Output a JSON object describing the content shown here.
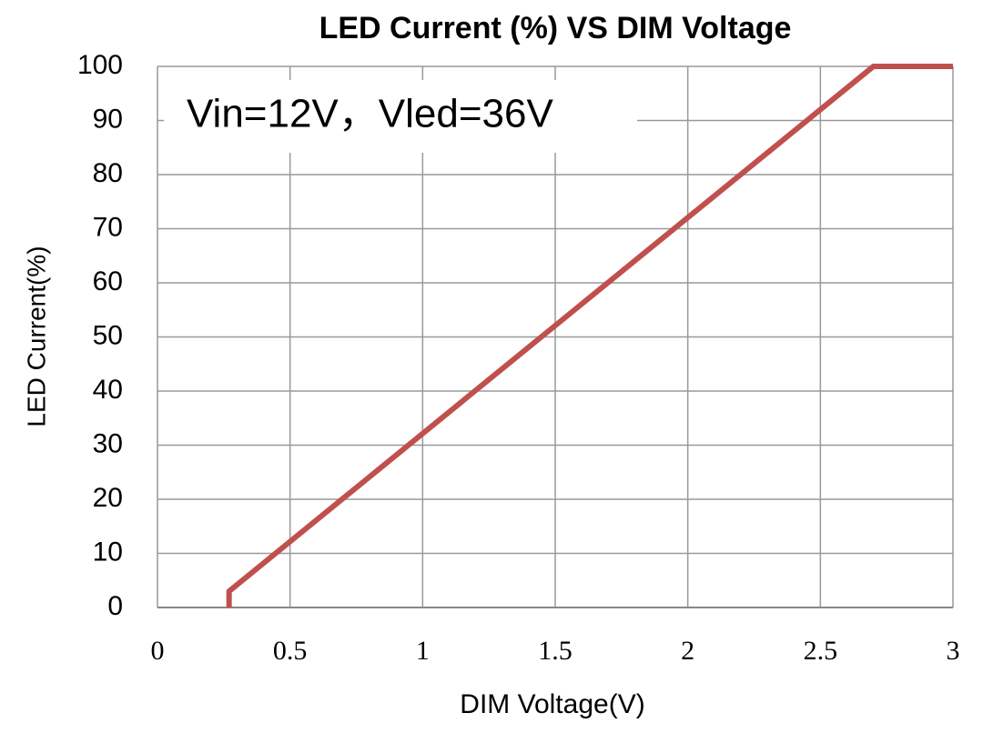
{
  "chart_data": {
    "type": "line",
    "title": "LED Current (%) VS DIM Voltage",
    "x_label": "DIM Voltage(V)",
    "y_label": "LED Current(%)",
    "annotation": "Vin=12V，Vled=36V",
    "x": [
      0.27,
      0.27,
      2.7,
      3
    ],
    "series": [
      {
        "name": "LED Current",
        "color": "#c0504d",
        "values": [
          0,
          3,
          100,
          100
        ]
      }
    ],
    "xlim": [
      0,
      3
    ],
    "xticks": [
      0,
      0.5,
      1,
      1.5,
      2,
      2.5,
      3
    ],
    "ylim": [
      0,
      100
    ],
    "yticks": [
      0,
      10,
      20,
      30,
      40,
      50,
      60,
      70,
      80,
      90,
      100
    ],
    "grid": true
  }
}
